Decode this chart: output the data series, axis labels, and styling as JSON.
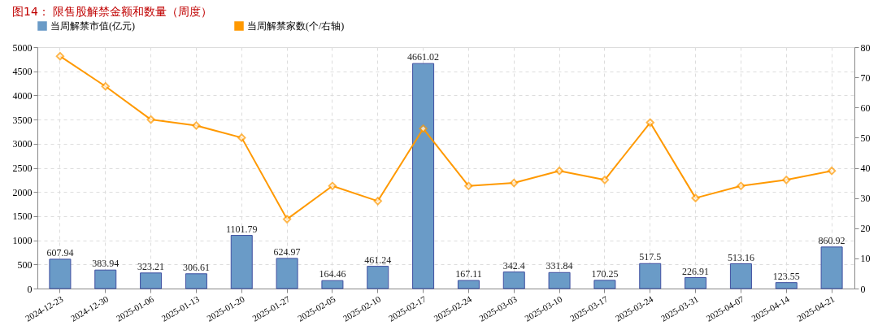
{
  "chart_data": {
    "type": "bar",
    "title": "图14：  限售股解禁金额和数量（周度）",
    "categories": [
      "2024-12-23",
      "2024-12-30",
      "2025-01-06",
      "2025-01-13",
      "2025-01-20",
      "2025-01-27",
      "2025-02-05",
      "2025-02-10",
      "2025-02-17",
      "2025-02-24",
      "2025-03-03",
      "2025-03-10",
      "2025-03-17",
      "2025-03-24",
      "2025-03-31",
      "2025-04-07",
      "2025-04-14",
      "2025-04-21"
    ],
    "series": [
      {
        "name": "当周解禁市值(亿元)",
        "color": "#6a9bc7",
        "values": [
          607.94,
          383.94,
          323.21,
          306.61,
          1101.79,
          624.97,
          164.46,
          461.24,
          4661.02,
          167.11,
          342.4,
          331.84,
          170.25,
          517.5,
          226.91,
          513.16,
          123.55,
          860.92
        ],
        "value_labels": [
          "607.94",
          "383.94",
          "323.21",
          "306.61",
          "1101.79",
          "624.97",
          "164.46",
          "461.24",
          "4661.02",
          "167.11",
          "342.4",
          "331.84",
          "170.25",
          "517.5",
          "226.91",
          "513.16",
          "123.55",
          "860.92"
        ]
      },
      {
        "name": "当周解禁家数(个/右轴)",
        "type": "line",
        "axis": "y2",
        "color": "#ff9900",
        "values": [
          77,
          67,
          56,
          54,
          50,
          23,
          34,
          29,
          53,
          34,
          35,
          39,
          36,
          55,
          30,
          34,
          36,
          39
        ]
      }
    ],
    "ylim": [
      0,
      5000
    ],
    "yticks": [
      0,
      500,
      1000,
      1500,
      2000,
      2500,
      3000,
      3500,
      4000,
      4500,
      5000
    ],
    "y2lim": [
      0,
      80
    ],
    "y2ticks": [
      0,
      10,
      20,
      30,
      40,
      50,
      60,
      70,
      80
    ],
    "grid": true,
    "legend": "top",
    "marker": "diamond",
    "line_style": "solid"
  }
}
